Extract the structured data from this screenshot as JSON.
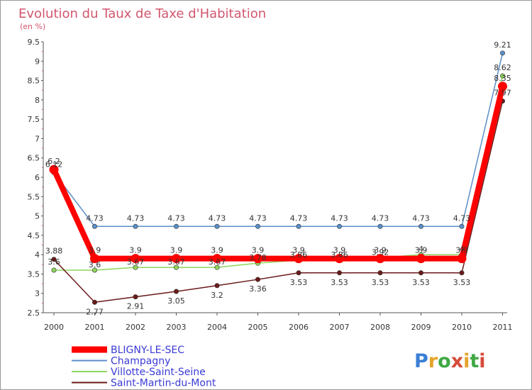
{
  "chart_data": {
    "type": "line",
    "title": "Evolution du Taux de Taxe d'Habitation",
    "unit_label": "(en %)",
    "categories": [
      "2000",
      "2001",
      "2002",
      "2003",
      "2004",
      "2005",
      "2006",
      "2007",
      "2008",
      "2009",
      "2010",
      "2011"
    ],
    "ylim": [
      2.5,
      9.5
    ],
    "yticks": [
      "2.5",
      "3",
      "3.5",
      "4",
      "4.5",
      "5",
      "5.5",
      "6",
      "6.5",
      "7",
      "7.5",
      "8",
      "8.5",
      "9",
      "9.5"
    ],
    "grid": false,
    "legend_position": "bottom-left",
    "series": [
      {
        "name": "BLIGNY-LE-SEC",
        "color": "#ff0000",
        "values": [
          6.2,
          3.9,
          3.9,
          3.9,
          3.9,
          3.9,
          3.9,
          3.9,
          3.9,
          3.9,
          3.9,
          8.35
        ],
        "labels": [
          "6.2",
          "3.9",
          "3.9",
          "3.9",
          "3.9",
          "3.9",
          "3.9",
          "3.9",
          "3.9",
          "3.9",
          "3.9",
          "8.35"
        ]
      },
      {
        "name": "Champagny",
        "color": "#5b8fc7",
        "values": [
          6.12,
          4.73,
          4.73,
          4.73,
          4.73,
          4.73,
          4.73,
          4.73,
          4.73,
          4.73,
          4.73,
          9.21
        ],
        "labels": [
          "6.12",
          "4.73",
          "4.73",
          "4.73",
          "4.73",
          "4.73",
          "4.73",
          "4.73",
          "4.73",
          "4.73",
          "4.73",
          "9.21"
        ]
      },
      {
        "name": "Villotte-Saint-Seine",
        "color": "#8fd65c",
        "values": [
          3.6,
          3.6,
          3.67,
          3.67,
          3.67,
          3.78,
          3.86,
          3.86,
          3.92,
          4.0,
          4.0,
          8.62
        ],
        "labels": [
          "3.6",
          "3.6",
          "3.67",
          "3.67",
          "3.67",
          "3.78",
          "3.86",
          "3.86",
          "3.92",
          "4",
          "4",
          "8.62"
        ]
      },
      {
        "name": "Saint-Martin-du-Mont",
        "color": "#6b1a1a",
        "values": [
          3.88,
          2.77,
          2.91,
          3.05,
          3.2,
          3.36,
          3.53,
          3.53,
          3.53,
          3.53,
          3.53,
          7.97
        ],
        "labels": [
          "3.88",
          "2.77",
          "2.91",
          "3.05",
          "3.2",
          "3.36",
          "3.53",
          "3.53",
          "3.53",
          "3.53",
          "3.53",
          "7.97"
        ]
      }
    ]
  },
  "brand": {
    "name": "Proxiti",
    "letters": [
      "P",
      "r",
      "o",
      "x",
      "i",
      "t",
      "i"
    ]
  }
}
